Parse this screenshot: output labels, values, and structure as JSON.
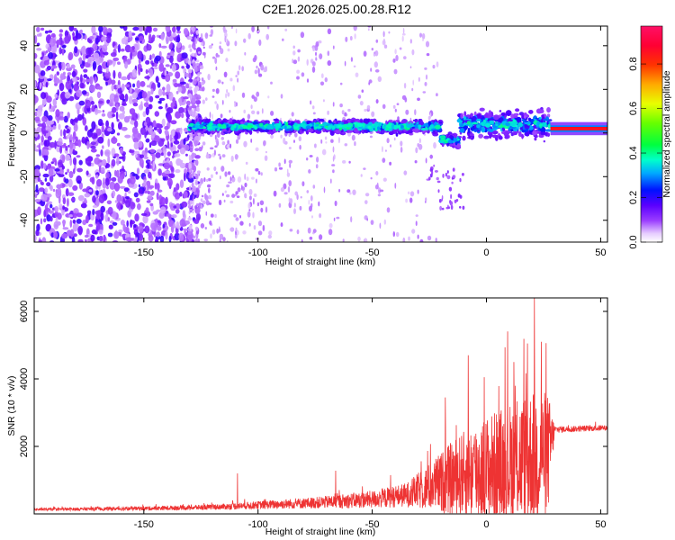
{
  "title": "C2E1.2026.025.00.28.R12",
  "colors": {
    "snr_line": "#ee3333",
    "spectro_strong": "#6a00ff",
    "spectro_weak": "#d8b8ff"
  },
  "chart_data": [
    {
      "type": "heatmap",
      "name": "spectrogram",
      "xlabel": "Height of straight line (km)",
      "ylabel": "Frequency (Hz)",
      "xlim": [
        -198,
        53
      ],
      "ylim": [
        -50,
        49
      ],
      "x_ticks": [
        -150,
        -100,
        -50,
        0,
        50
      ],
      "y_ticks": [
        -40,
        -20,
        0,
        20,
        40
      ],
      "colorbar": {
        "label": "Normalized spectral amplitude",
        "range": [
          0,
          0.97
        ],
        "ticks": [
          0.0,
          0.2,
          0.4,
          0.6,
          0.8
        ],
        "tick_labels": [
          "0.0",
          "0.2",
          "0.4",
          "0.6",
          "0.8"
        ],
        "colormap": "hsv-like (magenta, purple, blue, cyan, green, yellow, red)"
      },
      "description_bands": [
        {
          "x_range": [
            -198,
            -130
          ],
          "freq_range": [
            -50,
            49
          ],
          "amplitude": 0.15
        },
        {
          "x_range": [
            -130,
            -20
          ],
          "freq_center": 3,
          "freq_width": 8,
          "amplitude": 0.3
        },
        {
          "x_range": [
            -20,
            -12
          ],
          "freq_center": -3,
          "freq_width": 8,
          "amplitude": 0.35
        },
        {
          "x_range": [
            -12,
            28
          ],
          "freq_center": 4,
          "freq_width": 18,
          "amplitude": 0.25
        },
        {
          "x_range": [
            28,
            53
          ],
          "freq_center": 2,
          "freq_width": 3,
          "amplitude": 0.95
        }
      ]
    },
    {
      "type": "line",
      "name": "snr",
      "xlabel": "Height of straight line (km)",
      "ylabel": "SNR (10 * v/v)",
      "xlim": [
        -198,
        53
      ],
      "ylim": [
        0,
        6400
      ],
      "x_ticks": [
        -150,
        -100,
        -50,
        0,
        50
      ],
      "y_ticks": [
        2000,
        4000,
        6000
      ],
      "envelope": [
        {
          "x": -198,
          "base": 130,
          "amp": 40
        },
        {
          "x": -150,
          "base": 160,
          "amp": 60
        },
        {
          "x": -120,
          "base": 200,
          "amp": 80
        },
        {
          "x": -100,
          "base": 260,
          "amp": 120
        },
        {
          "x": -75,
          "base": 330,
          "amp": 170
        },
        {
          "x": -50,
          "base": 430,
          "amp": 260
        },
        {
          "x": -35,
          "base": 560,
          "amp": 360
        },
        {
          "x": -25,
          "base": 800,
          "amp": 700
        },
        {
          "x": -15,
          "base": 1050,
          "amp": 1100
        },
        {
          "x": -5,
          "base": 1250,
          "amp": 1500
        },
        {
          "x": 5,
          "base": 1400,
          "amp": 1700
        },
        {
          "x": 15,
          "base": 1600,
          "amp": 1900
        },
        {
          "x": 22,
          "base": 1700,
          "amp": 2100
        },
        {
          "x": 27,
          "base": 1800,
          "amp": 1800
        },
        {
          "x": 30,
          "base": 2500,
          "amp": 100
        },
        {
          "x": 53,
          "base": 2550,
          "amp": 80
        }
      ],
      "spikes": [
        {
          "x": -109,
          "y": 1200
        },
        {
          "x": -66,
          "y": 1280
        },
        {
          "x": -42,
          "y": 1150
        },
        {
          "x": -18,
          "y": 3450
        },
        {
          "x": -8,
          "y": 4700
        },
        {
          "x": 12,
          "y": 4500
        },
        {
          "x": 18,
          "y": 5050
        },
        {
          "x": 21,
          "y": 6400
        },
        {
          "x": 24,
          "y": 5100
        }
      ]
    }
  ]
}
